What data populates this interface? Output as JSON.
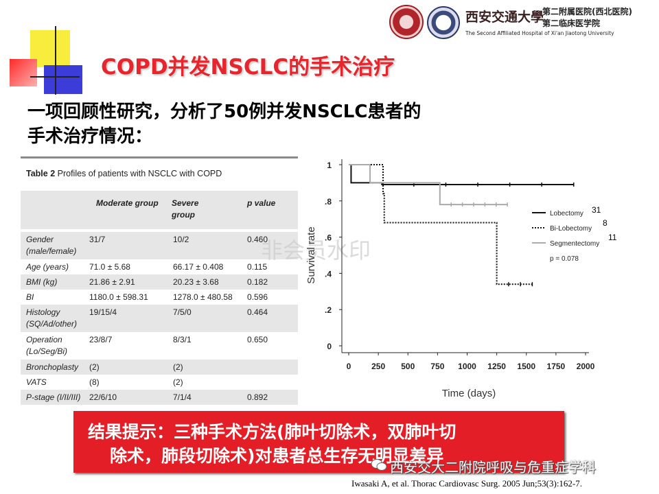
{
  "header": {
    "hospital_cn": "西安交通大學",
    "hospital_sub1": "第二附属医院(西北医院)",
    "hospital_sub2": "第二临床医学院",
    "hospital_en": "The Second Affiliated Hospital of Xi'an Jiaotong University"
  },
  "slide": {
    "title": "COPD并发NSCLC的手术治疗",
    "line1": "一项回顾性研究，分析了50例并发NSCLC患者的",
    "line2": "手术治疗情况："
  },
  "table": {
    "caption_bold": "Table 2",
    "caption_rest": " Profiles of patients with NSCLC with COPD",
    "headers": [
      "Moderate group",
      "Severe group",
      "p value"
    ],
    "rows": [
      {
        "label1": "Gender",
        "label2": "(male/female)",
        "moderate": "31/7",
        "severe": "10/2",
        "p": "0.460"
      },
      {
        "label1": "Age (years)",
        "label2": "",
        "moderate": "71.0 ± 5.68",
        "severe": "66.17 ± 0.408",
        "p": "0.115"
      },
      {
        "label1": "BMI (kg)",
        "label2": "",
        "moderate": "21.86 ± 2.91",
        "severe": "20.23 ± 3.68",
        "p": "0.182"
      },
      {
        "label1": "BI",
        "label2": "",
        "moderate": "1180.0 ± 598.31",
        "severe": "1278.0 ± 480.58",
        "p": "0.596"
      },
      {
        "label1": "Histology",
        "label2": "(SQ/Ad/other)",
        "moderate": "19/15/4",
        "severe": "7/5/0",
        "p": "0.464"
      },
      {
        "label1": "Operation",
        "label2": "(Lo/Seg/Bi)",
        "moderate": "23/8/7",
        "severe": "8/3/1",
        "p": "0.650"
      },
      {
        "label1": "Bronchoplasty",
        "label2": "",
        "moderate": "(2)",
        "severe": "(2)",
        "p": ""
      },
      {
        "label1": "VATS",
        "label2": "",
        "moderate": "(8)",
        "severe": "(2)",
        "p": ""
      },
      {
        "label1": "P-stage (I/II/III)",
        "label2": "",
        "moderate": "22/6/10",
        "severe": "7/1/4",
        "p": "0.892"
      }
    ]
  },
  "chart_data": {
    "type": "line",
    "xlabel": "Time (days)",
    "ylabel": "Survival rate",
    "xlim": [
      0,
      2000
    ],
    "ylim": [
      0,
      1
    ],
    "x_ticks": [
      "0",
      "250",
      "500",
      "750",
      "1000",
      "1250",
      "1500",
      "1750",
      "2000"
    ],
    "y_ticks": [
      "0",
      ".2",
      ".4",
      ".6",
      ".8",
      "1"
    ],
    "legend_position": "right",
    "p_value_text": "p = 0.078",
    "counts": [
      "31",
      "8",
      "11"
    ],
    "series": [
      {
        "name": "Lobectomy",
        "style": "solid",
        "color": "#111111",
        "x": [
          0,
          20,
          20,
          280,
          280,
          1900
        ],
        "y": [
          1.0,
          1.0,
          0.9,
          0.9,
          0.89,
          0.89
        ]
      },
      {
        "name": "Bi-Lobectomy",
        "style": "dotted",
        "color": "#111111",
        "x": [
          0,
          290,
          290,
          300,
          300,
          1250,
          1250,
          1550
        ],
        "y": [
          1.0,
          1.0,
          0.84,
          0.84,
          0.68,
          0.68,
          0.34,
          0.34
        ]
      },
      {
        "name": "Segmentectomy",
        "style": "solid",
        "color": "#aaaaaa",
        "x": [
          0,
          180,
          180,
          770,
          770,
          1340
        ],
        "y": [
          1.0,
          1.0,
          0.9,
          0.9,
          0.78,
          0.78
        ]
      }
    ]
  },
  "banner": {
    "line1": "结果提示：三种手术方法(肺叶切除术，双肺叶切",
    "line2": "除术，肺段切除术)对患者总生存无明显差异"
  },
  "watermarks": {
    "center": "非会员水印",
    "bottom": "西安交大二附院呼吸与危重症学科"
  },
  "citation": "Iwasaki A, et al. Thorac Cardiovasc Surg. 2005 Jun;53(3):162-7."
}
